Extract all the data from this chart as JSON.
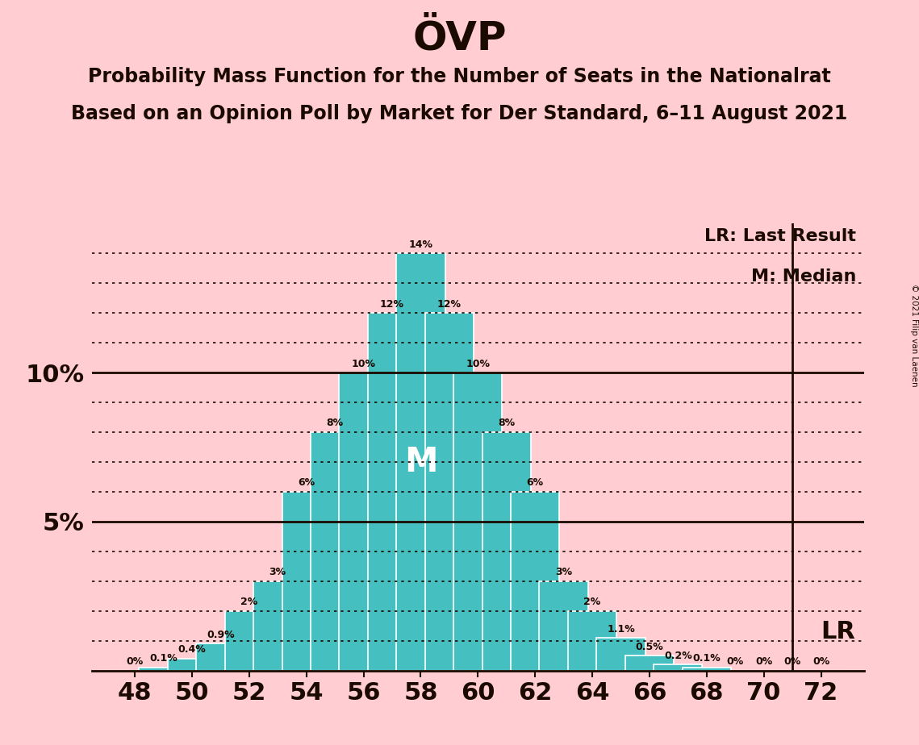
{
  "title": "ÖVP",
  "subtitle1": "Probability Mass Function for the Number of Seats in the Nationalrat",
  "subtitle2": "Based on an Opinion Poll by Market for Der Standard, 6–11 August 2021",
  "copyright": "© 2021 Filip van Laenen",
  "seats": [
    48,
    50,
    52,
    54,
    56,
    58,
    60,
    62,
    64,
    66,
    68,
    70,
    72
  ],
  "probabilities": [
    0.0,
    0.1,
    0.4,
    0.9,
    2.0,
    3.0,
    6.0,
    8.0,
    10.0,
    12.0,
    14.0,
    12.0,
    10.0,
    8.0,
    6.0,
    3.0,
    2.0,
    1.1,
    0.5,
    0.2,
    0.1,
    0.0,
    0.0,
    0.0,
    0.0
  ],
  "seats_all": [
    48,
    49,
    50,
    51,
    52,
    53,
    54,
    55,
    56,
    57,
    58,
    59,
    60,
    61,
    62,
    63,
    64,
    65,
    66,
    67,
    68,
    69,
    70,
    71,
    72
  ],
  "bar_color": "#45BFBF",
  "bar_edge_color": "#FFFFFF",
  "background_color": "#FFCDD2",
  "text_color": "#1A0A00",
  "median_seat": 58,
  "lr_seat": 71,
  "ylim": [
    0,
    15
  ],
  "solid_lines": [
    5,
    10
  ],
  "dotted_lines": [
    1,
    2,
    3,
    4,
    6,
    7,
    8,
    9,
    11,
    12,
    13,
    14
  ],
  "label_map": {
    "48": "0%",
    "49": "0.1%",
    "50": "0.4%",
    "51": "0.9%",
    "52": "2%",
    "53": "3%",
    "54": "6%",
    "55": "8%",
    "56": "10%",
    "57": "12%",
    "58": "14%",
    "59": "12%",
    "60": "10%",
    "61": "8%",
    "62": "6%",
    "63": "3%",
    "64": "2%",
    "65": "1.1%",
    "66": "0.5%",
    "67": "0.2%",
    "68": "0.1%",
    "69": "0%",
    "70": "0%",
    "71": "0%",
    "72": "0%"
  }
}
